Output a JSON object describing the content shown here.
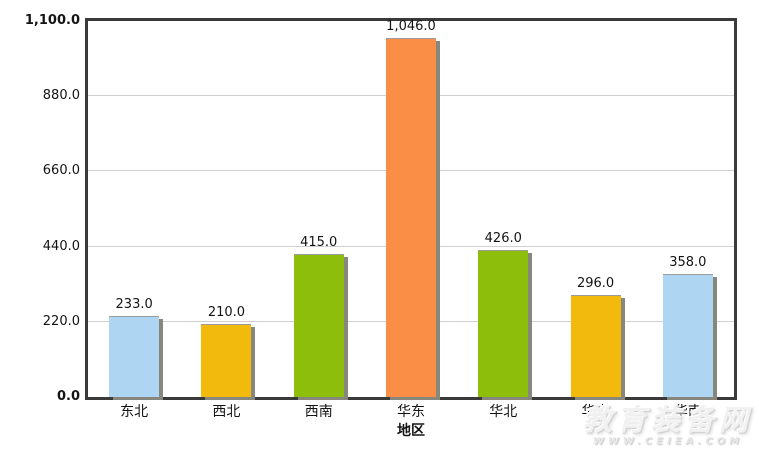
{
  "chart_data": {
    "type": "bar",
    "categories": [
      "东北",
      "西北",
      "西南",
      "华东",
      "华北",
      "华中",
      "华南"
    ],
    "values": [
      233,
      210,
      415,
      1046,
      426,
      296,
      358
    ],
    "value_labels": [
      "233.0",
      "210.0",
      "415.0",
      "1,046.0",
      "426.0",
      "296.0",
      "358.0"
    ],
    "bar_colors": [
      "#AED6F2",
      "#F2BA0D",
      "#8CBE0B",
      "#FB8E47",
      "#8CBE0B",
      "#F2BA0D",
      "#AED6F2"
    ],
    "title": "",
    "xlabel": "地区",
    "ylabel": "",
    "ylim": [
      0,
      1100
    ],
    "yticks": [
      0,
      220,
      440,
      660,
      880,
      1100
    ],
    "ytick_labels": [
      "0.0",
      "220.0",
      "440.0",
      "660.0",
      "880.0",
      "1,100.0"
    ],
    "grid": true,
    "legend": false
  },
  "watermark": {
    "title": "教育装备网",
    "url": "WWW.CEIEA.COM"
  },
  "colors": {
    "plot_border": "#3a3a3a",
    "gridline": "#cfcfcf",
    "bar_shadow": "#87877e",
    "label_text": "#141414",
    "background": "#ffffff"
  }
}
